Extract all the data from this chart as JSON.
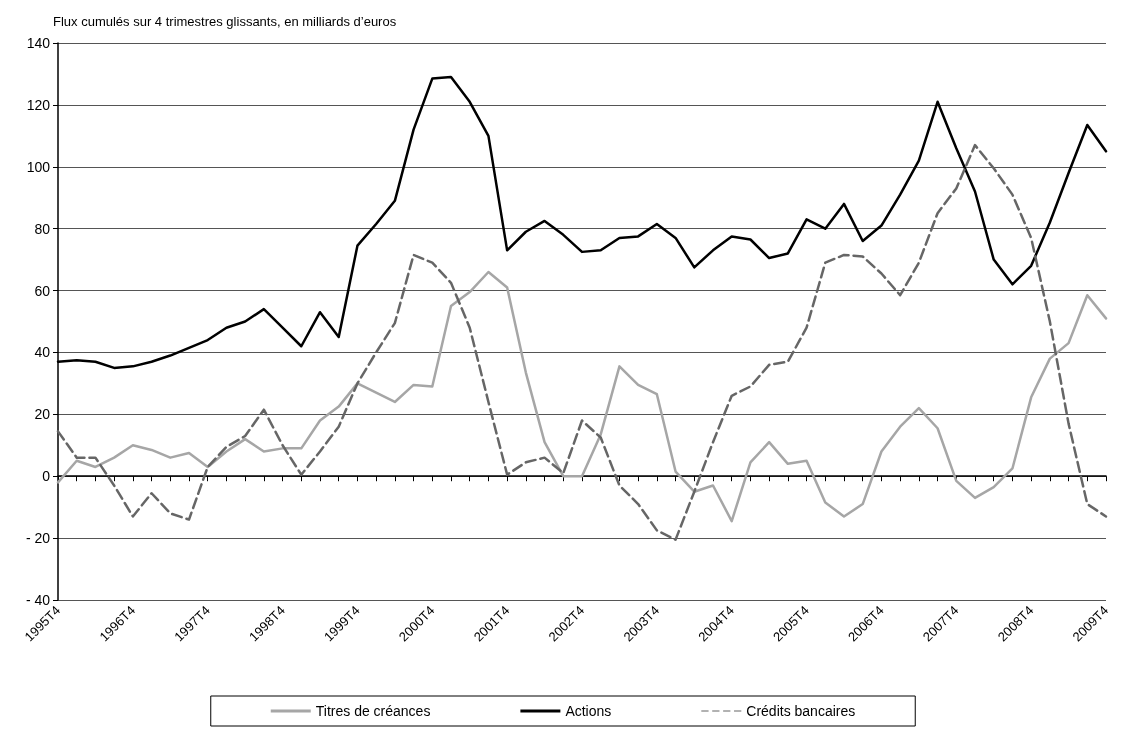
{
  "chart_data": {
    "type": "line",
    "title": "Flux cumulés sur 4 trimestres glissants, en milliards d’euros",
    "categories": [
      "1995T4",
      null,
      null,
      null,
      "1996T4",
      null,
      null,
      null,
      "1997T4",
      null,
      null,
      null,
      "1998T4",
      null,
      null,
      null,
      "1999T4",
      null,
      null,
      null,
      "2000T4",
      null,
      null,
      null,
      "2001T4",
      null,
      null,
      null,
      "2002T4",
      null,
      null,
      null,
      "2003T4",
      null,
      null,
      null,
      "2004T4",
      null,
      null,
      null,
      "2005T4",
      null,
      null,
      null,
      "2006T4",
      null,
      null,
      null,
      "2007T4",
      null,
      null,
      null,
      "2008T4",
      null,
      null,
      null,
      "2009T4"
    ],
    "series": [
      {
        "name": "Titres de créances",
        "color": "#a6a6a6",
        "line_style": "solid",
        "values": [
          -2,
          5,
          3,
          6,
          10,
          8.5,
          6,
          7.5,
          3,
          8,
          12,
          8,
          9,
          9,
          18,
          22.5,
          30,
          27,
          24,
          29.5,
          29,
          55,
          59.5,
          66,
          61,
          33.5,
          11,
          0,
          0,
          13.5,
          35.5,
          29.5,
          26.5,
          1.5,
          -5,
          -3,
          -14.5,
          4.5,
          11,
          4,
          5,
          -8.5,
          -13,
          -9,
          8,
          16,
          22,
          15.5,
          -1.5,
          -7,
          -3.5,
          2.5,
          25.5,
          38,
          43,
          58.5,
          51
        ]
      },
      {
        "name": "Actions",
        "color": "#000000",
        "line_style": "solid",
        "values": [
          37,
          37.5,
          37,
          35,
          35.5,
          37,
          39,
          41.5,
          44,
          48,
          50,
          54,
          48,
          42,
          53,
          45,
          74.5,
          81.5,
          89,
          112,
          128.5,
          129,
          121,
          110,
          73,
          79,
          82.5,
          78,
          72.5,
          73,
          77,
          77.5,
          81.5,
          77,
          67.5,
          73,
          77.5,
          76.5,
          70.5,
          72,
          83,
          80,
          88,
          76,
          81,
          91,
          102,
          121,
          106,
          92,
          70,
          62,
          68,
          82,
          98,
          113.5,
          105
        ]
      },
      {
        "name": "Crédits bancaires",
        "color": "#666666",
        "line_style": "dashed",
        "values": [
          14.5,
          6,
          6,
          -3,
          -13,
          -5.5,
          -12,
          -14,
          3,
          9.5,
          13,
          21.5,
          10,
          0.5,
          8,
          16,
          30,
          40,
          49.5,
          71.5,
          69,
          62.5,
          48,
          24,
          0.5,
          4.5,
          6,
          1,
          18,
          12.5,
          -3,
          -9,
          -17.5,
          -20.5,
          -5,
          11,
          26,
          29,
          36,
          37,
          48,
          69,
          71.5,
          71,
          65.5,
          58.5,
          69,
          85,
          93,
          107,
          99.5,
          91,
          77,
          50,
          17,
          -9,
          -13
        ]
      }
    ],
    "ylim": [
      -40,
      140
    ],
    "yticks": [
      {
        "value": -40,
        "label": "- 40"
      },
      {
        "value": -20,
        "label": "- 20"
      },
      0,
      20,
      40,
      60,
      80,
      100,
      120,
      140
    ],
    "grid": "y",
    "legend": "bottom",
    "marker": "none"
  }
}
